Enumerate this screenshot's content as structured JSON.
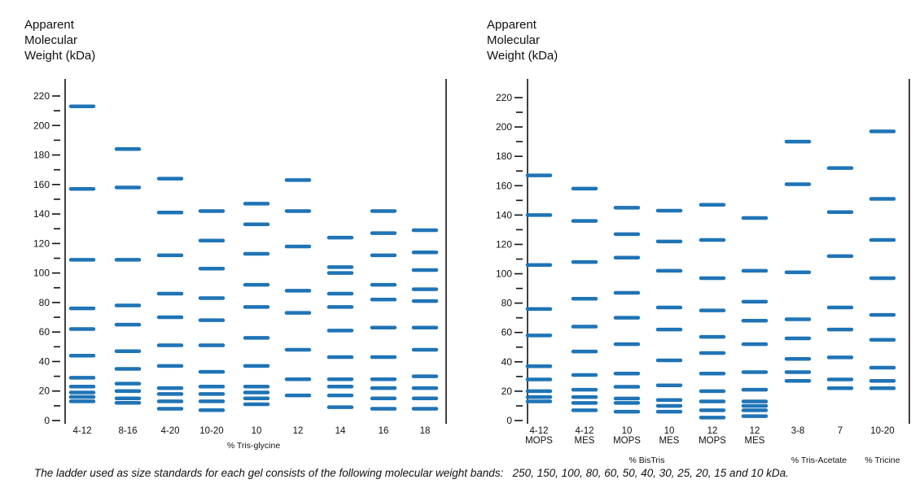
{
  "caption": {
    "text": "The ladder used as size standards for each gel consists of the following molecular weight bands:",
    "bands": "250, 150, 100, 80, 60, 50, 40, 30, 25, 20, 15 and 10 kDa."
  },
  "chart_data": [
    {
      "type": "gel-ladder",
      "ylabel": [
        "Apparent",
        "Molecular",
        "Weight (kDa)"
      ],
      "yticks": [
        0,
        20,
        40,
        60,
        80,
        100,
        120,
        140,
        160,
        180,
        200,
        220
      ],
      "ylim": [
        0,
        220
      ],
      "group_labels": [
        {
          "text": "% Tris-glycine",
          "lanes": [
            0,
            8
          ]
        }
      ],
      "lanes": [
        {
          "label": [
            "4-12"
          ],
          "bands": [
            213,
            157,
            109,
            76,
            62,
            44,
            29,
            23,
            19,
            16,
            13
          ]
        },
        {
          "label": [
            "8-16"
          ],
          "bands": [
            184,
            158,
            109,
            78,
            65,
            47,
            35,
            25,
            20,
            15,
            12
          ]
        },
        {
          "label": [
            "4-20"
          ],
          "bands": [
            164,
            141,
            112,
            86,
            70,
            51,
            37,
            22,
            18,
            13,
            8
          ]
        },
        {
          "label": [
            "10-20"
          ],
          "bands": [
            142,
            122,
            103,
            83,
            68,
            51,
            33,
            23,
            18,
            13,
            7
          ]
        },
        {
          "label": [
            "10"
          ],
          "bands": [
            147,
            133,
            113,
            92,
            77,
            56,
            37,
            23,
            19,
            15,
            11
          ]
        },
        {
          "label": [
            "12"
          ],
          "bands": [
            163,
            142,
            118,
            88,
            73,
            48,
            28,
            17
          ]
        },
        {
          "label": [
            "14"
          ],
          "bands": [
            124,
            104,
            100,
            86,
            77,
            61,
            43,
            28,
            23,
            17,
            9
          ]
        },
        {
          "label": [
            "16"
          ],
          "bands": [
            142,
            127,
            112,
            92,
            82,
            63,
            43,
            28,
            22,
            15,
            8
          ]
        },
        {
          "label": [
            "18"
          ],
          "bands": [
            129,
            114,
            102,
            89,
            81,
            63,
            48,
            30,
            22,
            15,
            8
          ]
        }
      ]
    },
    {
      "type": "gel-ladder",
      "ylabel": [
        "Apparent",
        "Molecular",
        "Weight (kDa)"
      ],
      "yticks": [
        0,
        20,
        40,
        60,
        80,
        100,
        120,
        140,
        160,
        180,
        200,
        220
      ],
      "ylim": [
        0,
        220
      ],
      "group_labels": [
        {
          "text": "% BisTris",
          "lanes": [
            0,
            5
          ]
        },
        {
          "text": "% Tris-Acetate",
          "lanes": [
            6,
            7
          ]
        },
        {
          "text": "% Tricine",
          "lanes": [
            8,
            8
          ]
        }
      ],
      "lanes": [
        {
          "label": [
            "4-12",
            "MOPS"
          ],
          "bands": [
            167,
            140,
            106,
            76,
            58,
            37,
            28,
            20,
            16,
            13
          ]
        },
        {
          "label": [
            "4-12",
            "MES"
          ],
          "bands": [
            158,
            136,
            108,
            83,
            64,
            47,
            31,
            21,
            16,
            12,
            7
          ]
        },
        {
          "label": [
            "10",
            "MOPS"
          ],
          "bands": [
            145,
            127,
            111,
            87,
            70,
            52,
            32,
            23,
            15,
            12,
            6
          ]
        },
        {
          "label": [
            "10",
            "MES"
          ],
          "bands": [
            143,
            122,
            102,
            77,
            62,
            41,
            24,
            14,
            10,
            6
          ]
        },
        {
          "label": [
            "12",
            "MOPS"
          ],
          "bands": [
            147,
            123,
            97,
            75,
            57,
            46,
            32,
            20,
            13,
            7,
            2
          ]
        },
        {
          "label": [
            "12",
            "MES"
          ],
          "bands": [
            138,
            102,
            81,
            68,
            52,
            33,
            21,
            13,
            10,
            7,
            3
          ]
        },
        {
          "label": [
            "3-8"
          ],
          "bands": [
            190,
            161,
            101,
            69,
            56,
            42,
            33,
            27
          ]
        },
        {
          "label": [
            "7"
          ],
          "bands": [
            172,
            142,
            112,
            77,
            62,
            43,
            28,
            22
          ]
        },
        {
          "label": [
            "10-20"
          ],
          "bands": [
            197,
            151,
            123,
            97,
            72,
            55,
            36,
            27,
            22
          ]
        }
      ]
    }
  ],
  "colors": {
    "band": "#1f74b6",
    "axis": "#111111"
  }
}
